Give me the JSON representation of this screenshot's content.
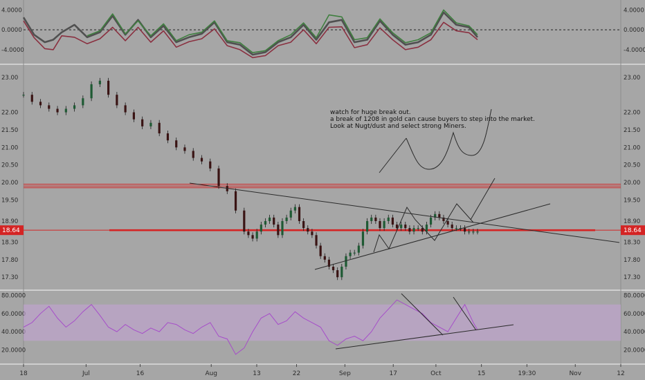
{
  "colors": {
    "background": "#a6a6a6",
    "osc_green": "#3f7f3f",
    "osc_red": "#8a3040",
    "osc_grey": "#505050",
    "up_candle": "#1f5a34",
    "down_candle": "#3a1414",
    "resistance": "#d42424",
    "support": "#d42424",
    "rsi_line": "#a64dc9",
    "rsi_band": "#c3a3d4",
    "trendline": "#2a2a2a"
  },
  "chart_data": [
    {
      "type": "line",
      "panel": "oscillator",
      "ylim": [
        -6.8,
        6.0
      ],
      "tick_labels": [
        "4.0000",
        "0.0000",
        "-4.0000"
      ],
      "tick_values": [
        4,
        0,
        -4
      ],
      "zero_line": "dashed",
      "series": [
        {
          "color_key": "osc_grey",
          "x": [
            0,
            5,
            10,
            14,
            18,
            24,
            30,
            36,
            42,
            48,
            54,
            60,
            66,
            72,
            78,
            84,
            90,
            96,
            102,
            108,
            114,
            120,
            126,
            132,
            138,
            144,
            150,
            156,
            162,
            168,
            174,
            180,
            186,
            192,
            198,
            204,
            210,
            214
          ],
          "values": [
            2.5,
            -1.0,
            -2.5,
            -2.0,
            -0.5,
            1.0,
            -1.5,
            -0.5,
            2.8,
            -1.0,
            2.0,
            -1.5,
            0.8,
            -2.5,
            -1.5,
            -0.8,
            1.5,
            -2.5,
            -3.0,
            -5.0,
            -4.5,
            -2.5,
            -1.5,
            1.0,
            -2.0,
            1.5,
            2.0,
            -2.5,
            -2.0,
            1.8,
            -1.0,
            -3.0,
            -2.5,
            -1.0,
            3.5,
            1.0,
            0.5,
            -1.5
          ]
        },
        {
          "color_key": "osc_green",
          "x": [
            30,
            36,
            42,
            48,
            54,
            60,
            66,
            72,
            78,
            84,
            90,
            96,
            102,
            108,
            114,
            120,
            126,
            132,
            138,
            144,
            150,
            156,
            162,
            168,
            174,
            180,
            186,
            192,
            198,
            204,
            210,
            214
          ],
          "values": [
            -1.2,
            -0.2,
            3.2,
            -0.8,
            1.8,
            -1.2,
            1.2,
            -2.2,
            -1.0,
            -0.5,
            1.8,
            -2.2,
            -2.6,
            -4.6,
            -4.2,
            -2.2,
            -1.0,
            1.4,
            -1.6,
            3.0,
            2.6,
            -2.0,
            -1.6,
            2.2,
            -0.6,
            -2.6,
            -2.0,
            -0.6,
            4.0,
            1.4,
            0.8,
            -1.0
          ]
        },
        {
          "color_key": "osc_red",
          "x": [
            0,
            5,
            10,
            14,
            18,
            24,
            30,
            36,
            42,
            48,
            54,
            60,
            66,
            72,
            78,
            84,
            90,
            96,
            102,
            108,
            114,
            120,
            126,
            132,
            138,
            144,
            150,
            156,
            162,
            168,
            174,
            180,
            186,
            192,
            198,
            204,
            210,
            214
          ],
          "values": [
            1.8,
            -1.6,
            -3.8,
            -4.0,
            -1.2,
            -1.5,
            -2.8,
            -1.8,
            0.5,
            -2.2,
            0.5,
            -2.5,
            -0.2,
            -3.5,
            -2.4,
            -1.8,
            0.2,
            -3.2,
            -4.0,
            -5.6,
            -5.2,
            -3.2,
            -2.5,
            0.0,
            -2.8,
            0.5,
            0.6,
            -3.6,
            -3.0,
            0.4,
            -2.0,
            -4.0,
            -3.5,
            -2.0,
            1.5,
            -0.2,
            -0.6,
            -2.0
          ]
        }
      ]
    },
    {
      "type": "candlestick",
      "panel": "price",
      "ylim": [
        16.95,
        23.35
      ],
      "tick_labels": [
        "23.00",
        "22.00",
        "21.50",
        "21.00",
        "20.50",
        "20.00",
        "19.50",
        "18.90",
        "18.30",
        "17.80",
        "17.30"
      ],
      "tick_values": [
        23.0,
        22.0,
        21.5,
        21.0,
        20.5,
        20.0,
        19.5,
        18.9,
        18.3,
        17.8,
        17.3
      ],
      "last_price_label": "18.64",
      "last_price": 18.64,
      "series": [
        {
          "name": "",
          "x": [
            0,
            4,
            8,
            12,
            16,
            20,
            24,
            28,
            32,
            36,
            40,
            44,
            48,
            52,
            56,
            60,
            64,
            68,
            72,
            76,
            80,
            84,
            88,
            92,
            96,
            100,
            104,
            106,
            108,
            110,
            112,
            114,
            116,
            118,
            120,
            122,
            124,
            126,
            128,
            130,
            132,
            134,
            136,
            138,
            140,
            142,
            144,
            146,
            148,
            150,
            152,
            154,
            156,
            158,
            160,
            162,
            164,
            166,
            168,
            170,
            172,
            174,
            176,
            178,
            180,
            182,
            184,
            186,
            188,
            190,
            192,
            194,
            196,
            198,
            200,
            202,
            204,
            206,
            208,
            210,
            212,
            214
          ],
          "values": [
            22.5,
            22.3,
            22.2,
            22.1,
            22.0,
            22.1,
            22.2,
            22.4,
            22.8,
            22.9,
            22.5,
            22.2,
            22.0,
            21.8,
            21.6,
            21.7,
            21.4,
            21.2,
            21.0,
            20.9,
            20.7,
            20.6,
            20.4,
            19.9,
            19.75,
            19.2,
            18.6,
            18.5,
            18.4,
            18.6,
            18.8,
            18.9,
            19.0,
            18.8,
            18.5,
            18.9,
            19.0,
            19.2,
            19.3,
            18.9,
            18.7,
            18.6,
            18.5,
            18.2,
            17.9,
            17.8,
            17.6,
            17.5,
            17.3,
            17.6,
            17.9,
            18.0,
            18.0,
            18.2,
            18.6,
            18.9,
            19.0,
            18.9,
            18.7,
            18.9,
            19.0,
            18.8,
            18.7,
            18.8,
            18.7,
            18.6,
            18.7,
            18.7,
            18.6,
            18.8,
            19.0,
            19.1,
            19.0,
            18.9,
            18.8,
            18.7,
            18.7,
            18.7,
            18.6,
            18.6,
            18.6,
            18.6
          ]
        }
      ],
      "horizontal_lines": [
        {
          "value": 19.85,
          "color_key": "resistance"
        },
        {
          "value": 19.9,
          "color_key": "resistance"
        },
        {
          "value": 19.95,
          "color_key": "resistance"
        },
        {
          "value": 18.64,
          "color_key": "support",
          "thick": true
        }
      ],
      "annotation": [
        "watch for huge break out.",
        "a break of 1208 in gold can cause buyers to step into the market.",
        "Look at Nugt/dust and select strong Miners."
      ]
    },
    {
      "type": "line",
      "panel": "rsi",
      "ylim": [
        5,
        85
      ],
      "tick_labels": [
        "80.0000",
        "60.0000",
        "40.0000",
        "20.0000"
      ],
      "tick_values": [
        80,
        60,
        40,
        20
      ],
      "band": [
        30,
        70
      ],
      "series": [
        {
          "name": "",
          "color_key": "rsi_line",
          "x": [
            0,
            4,
            8,
            12,
            16,
            20,
            24,
            28,
            32,
            36,
            40,
            44,
            48,
            52,
            56,
            60,
            64,
            68,
            72,
            76,
            80,
            84,
            88,
            92,
            96,
            100,
            104,
            108,
            112,
            116,
            120,
            124,
            128,
            132,
            136,
            140,
            144,
            148,
            152,
            156,
            160,
            164,
            168,
            172,
            176,
            180,
            184,
            188,
            192,
            196,
            200,
            204,
            208,
            212,
            214
          ],
          "values": [
            45,
            50,
            60,
            68,
            55,
            45,
            52,
            62,
            70,
            58,
            45,
            40,
            48,
            42,
            38,
            44,
            40,
            50,
            48,
            42,
            38,
            45,
            50,
            35,
            32,
            15,
            22,
            40,
            55,
            60,
            48,
            52,
            62,
            55,
            50,
            45,
            30,
            25,
            32,
            35,
            30,
            40,
            55,
            65,
            75,
            70,
            65,
            60,
            50,
            45,
            40,
            55,
            70,
            50,
            42
          ]
        }
      ]
    }
  ],
  "x_axis": {
    "labels": [
      "18",
      "Jul",
      "16",
      "Aug",
      "13",
      "22",
      "Sep",
      "17",
      "Oct",
      "15",
      "19:30",
      "Nov",
      "12"
    ],
    "positions": [
      0,
      11,
      20.5,
      33,
      41,
      48,
      56.5,
      65,
      72.5,
      80.5,
      88.5,
      97,
      105
    ]
  }
}
